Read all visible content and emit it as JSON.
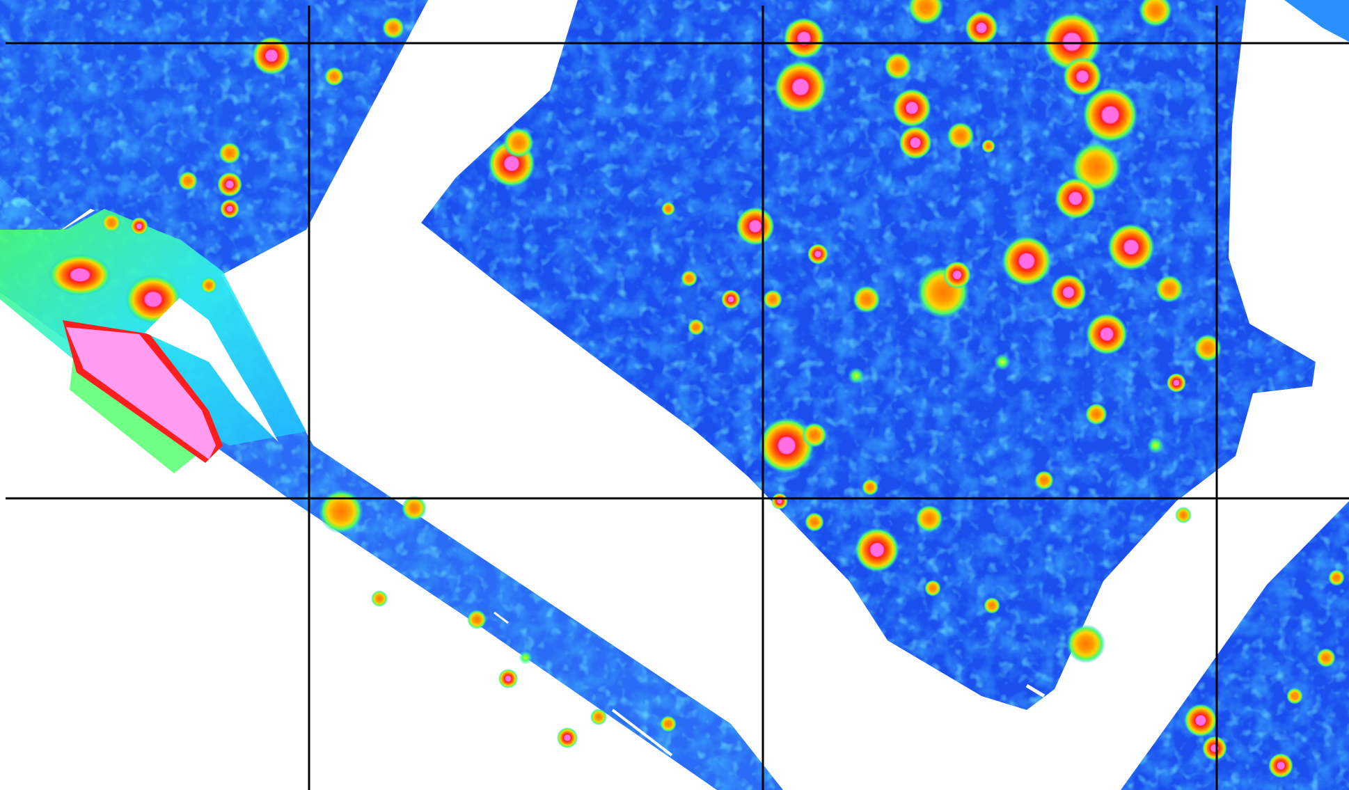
{
  "map": {
    "type": "raster-heatmap",
    "background_color": "#ffffff",
    "color_ramp": [
      "#0a1ef0",
      "#2f6bff",
      "#22b8ff",
      "#2ff0f0",
      "#4cff66",
      "#d8ff1e",
      "#ffd400",
      "#ff7a00",
      "#ff1e1e",
      "#ff6fe3"
    ],
    "low_color": "#0a1ef0",
    "high_color": "#ff6fe3",
    "saturated_color": "#ff9bf0",
    "grid_line_color": "#000000",
    "grid": {
      "columns": 4,
      "rows": 3
    },
    "labels": []
  }
}
